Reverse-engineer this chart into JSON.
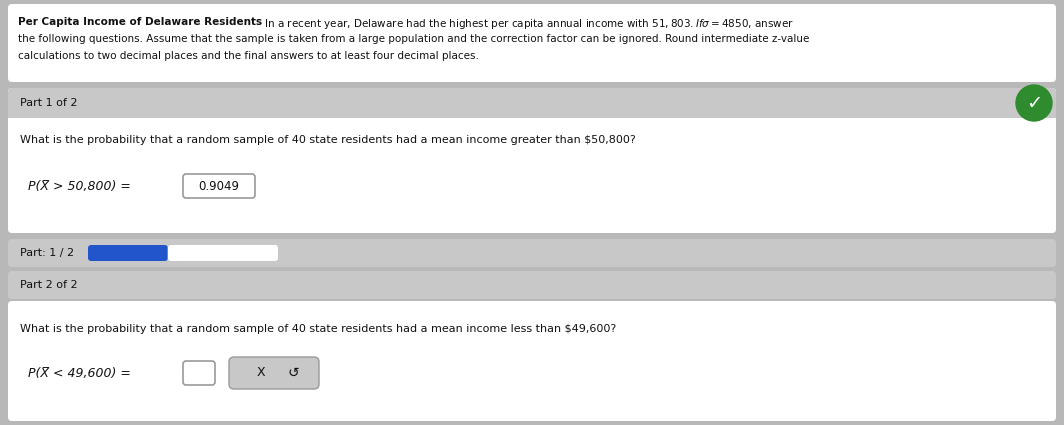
{
  "bg_color": "#b8b8b8",
  "white": "#ffffff",
  "light_gray_header": "#c8c8c8",
  "part2_bg": "#c0c0c0",
  "progress_bg": "#c8c8c8",
  "blue_bar": "#2255cc",
  "green_circle": "#2e8b2e",
  "text_dark": "#111111",
  "box_border": "#999999",
  "title_bold": "Per Capita Income of Delaware Residents",
  "title_line1_rest": " In a recent year, Delaware had the highest per capita annual income with $51,803. If σ = $4850, answer",
  "title_line2": "the following questions. Assume that the sample is taken from a large population and the correction factor can be ignored. Round intermediate z-value",
  "title_line3": "calculations to two decimal places and the final answers to at least four decimal places.",
  "part1_label": "Part 1 of 2",
  "part1_question": "What is the probability that a random sample of 40 state residents had a mean income greater than $50,800?",
  "part1_eq_left": "P(Χ̅ > 50,800) =",
  "part1_answer": "0.9049",
  "progress_label": "Part: 1 / 2",
  "part2_label": "Part 2 of 2",
  "part2_question": "What is the probability that a random sample of 40 state residents had a mean income less than $49,600?",
  "part2_eq_left": "P(Χ̅ < 49,600) =",
  "x_label": "X",
  "refresh_label": "↺"
}
